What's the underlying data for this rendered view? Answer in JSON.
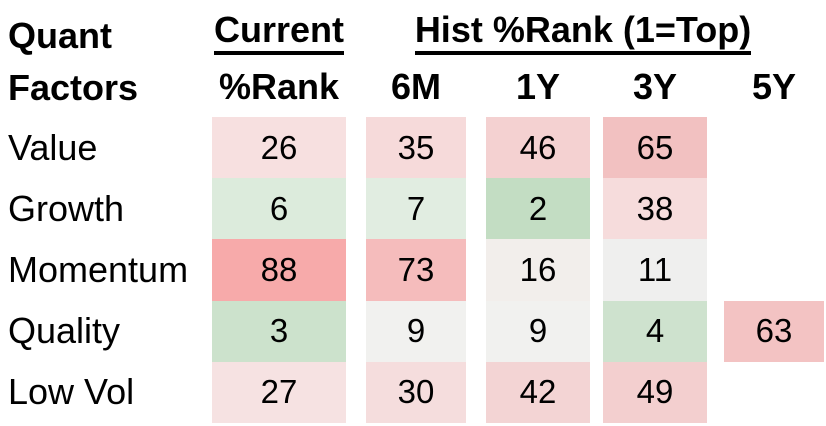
{
  "title": {
    "line1": "Quant",
    "line2": "Factors"
  },
  "group_headers": {
    "current": "Current",
    "hist": "Hist %Rank (1=Top)"
  },
  "column_headers": {
    "current": "%Rank",
    "m6": "6M",
    "y1": "1Y",
    "y3": "3Y",
    "y5": "5Y"
  },
  "table": {
    "rows": [
      {
        "label": "Value",
        "cells": [
          {
            "v": "26",
            "bg": "#f7e0e0"
          },
          {
            "v": "35",
            "bg": "#f6dada"
          },
          {
            "v": "46",
            "bg": "#f4d1d1"
          },
          {
            "v": "65",
            "bg": "#f2c1c1"
          }
        ]
      },
      {
        "label": "Growth",
        "cells": [
          {
            "v": "6",
            "bg": "#dcebdc"
          },
          {
            "v": "7",
            "bg": "#e1ede1"
          },
          {
            "v": "2",
            "bg": "#c3ddc3"
          },
          {
            "v": "38",
            "bg": "#f6dcdc"
          }
        ]
      },
      {
        "label": "Momentum",
        "cells": [
          {
            "v": "88",
            "bg": "#f7aaaa"
          },
          {
            "v": "73",
            "bg": "#f5bcbc"
          },
          {
            "v": "16",
            "bg": "#f2eeeb"
          },
          {
            "v": "11",
            "bg": "#efefee"
          }
        ]
      },
      {
        "label": "Quality",
        "cells": [
          {
            "v": "3",
            "bg": "#cce2cc"
          },
          {
            "v": "9",
            "bg": "#f1f1ef"
          },
          {
            "v": "9",
            "bg": "#f1f1ef"
          },
          {
            "v": "4",
            "bg": "#cee2ce"
          },
          {
            "v": "63",
            "bg": "#f3c3c3"
          }
        ]
      },
      {
        "label": "Low Vol",
        "cells": [
          {
            "v": "27",
            "bg": "#f6e2e2"
          },
          {
            "v": "30",
            "bg": "#f5dddd"
          },
          {
            "v": "42",
            "bg": "#f3d4d4"
          },
          {
            "v": "49",
            "bg": "#f3cfcf"
          }
        ]
      }
    ]
  },
  "colors": {
    "best_green": "#c3ddc3",
    "neutral": "#f1f1ef",
    "worst_red": "#f7aaaa",
    "text": "#000000",
    "background": "#ffffff"
  },
  "chart_data": {
    "type": "heatmap",
    "title": "Quant Factors — Current and Historical Percentile Ranks (1=Top)",
    "columns": [
      "Current %Rank",
      "6M",
      "1Y",
      "3Y",
      "5Y"
    ],
    "rows": [
      "Value",
      "Growth",
      "Momentum",
      "Quality",
      "Low Vol"
    ],
    "values": [
      [
        26,
        35,
        46,
        65,
        null
      ],
      [
        6,
        7,
        2,
        38,
        null
      ],
      [
        88,
        73,
        16,
        11,
        null
      ],
      [
        3,
        9,
        9,
        4,
        63
      ],
      [
        27,
        30,
        42,
        49,
        null
      ]
    ],
    "value_range": [
      1,
      100
    ],
    "color_scale": "green = low rank (best, 1=Top), white ≈ 10-15, red = high rank (worst)",
    "legend": "none",
    "grid": "off"
  }
}
